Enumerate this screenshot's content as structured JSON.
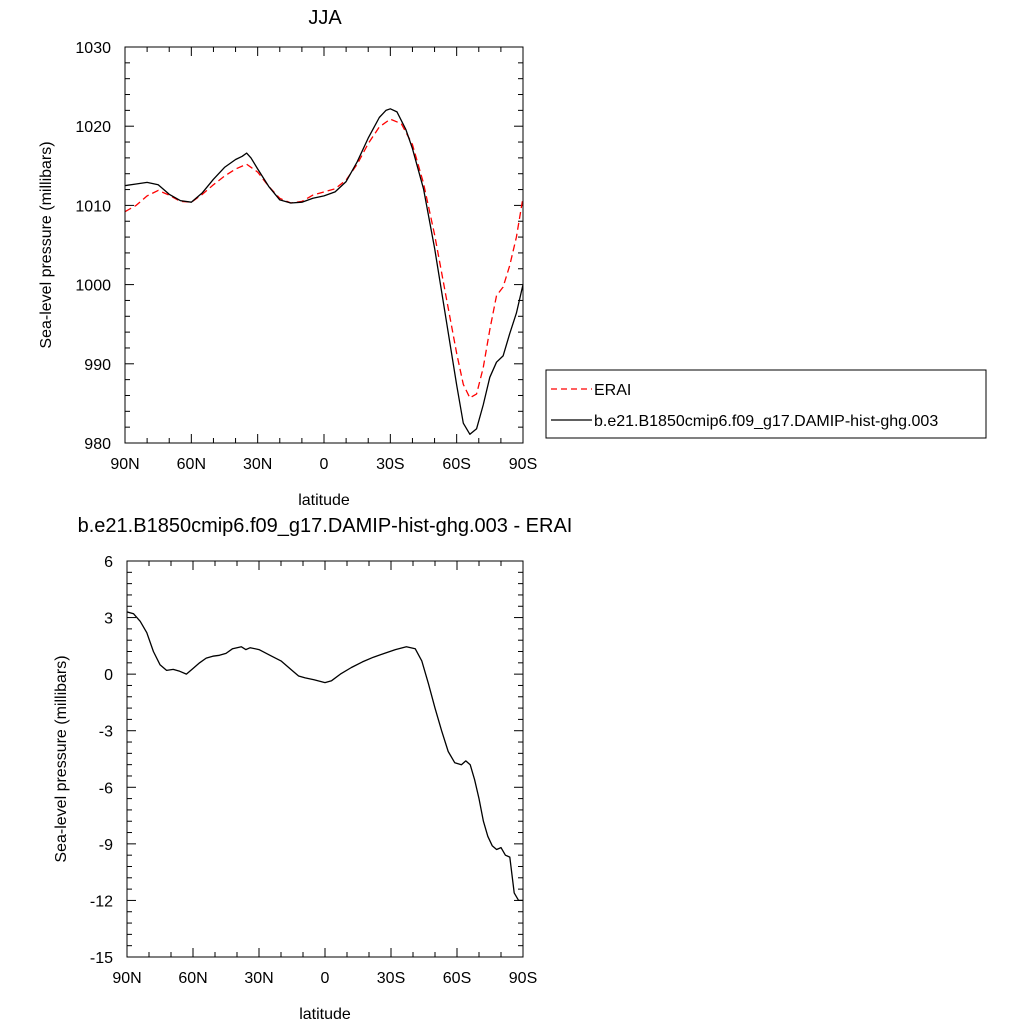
{
  "chart_data": [
    {
      "type": "line",
      "title": "JJA",
      "xlabel": "latitude",
      "ylabel": "Sea-level pressure (millibars)",
      "xlim": [
        90,
        -90
      ],
      "ylim": [
        980,
        1030
      ],
      "x_ticks": [
        90,
        60,
        30,
        0,
        -30,
        -60,
        -90
      ],
      "x_tick_labels": [
        "90N",
        "60N",
        "30N",
        "0",
        "30S",
        "60S",
        "90S"
      ],
      "y_ticks": [
        980,
        990,
        1000,
        1010,
        1020,
        1030
      ],
      "y_tick_labels": [
        "980",
        "990",
        "1000",
        "1010",
        "1020",
        "1030"
      ],
      "legend_position": "right",
      "series": [
        {
          "name": "ERAI",
          "color": "#ff0000",
          "dash": "dashed",
          "points": [
            [
              90,
              1009.2
            ],
            [
              85,
              1010
            ],
            [
              80,
              1011.2
            ],
            [
              75,
              1011.9
            ],
            [
              70,
              1011.3
            ],
            [
              65,
              1010.5
            ],
            [
              60,
              1010.4
            ],
            [
              55,
              1011.4
            ],
            [
              50,
              1012.6
            ],
            [
              45,
              1013.7
            ],
            [
              40,
              1014.6
            ],
            [
              35,
              1015.2
            ],
            [
              30,
              1014.2
            ],
            [
              25,
              1012.4
            ],
            [
              20,
              1010.9
            ],
            [
              15,
              1010.3
            ],
            [
              10,
              1010.5
            ],
            [
              5,
              1011.3
            ],
            [
              0,
              1011.7
            ],
            [
              -5,
              1012.1
            ],
            [
              -10,
              1013.2
            ],
            [
              -15,
              1015.2
            ],
            [
              -20,
              1017.8
            ],
            [
              -25,
              1019.9
            ],
            [
              -30,
              1020.9
            ],
            [
              -35,
              1020.3
            ],
            [
              -40,
              1017.7
            ],
            [
              -45,
              1012.8
            ],
            [
              -50,
              1006.3
            ],
            [
              -55,
              998.8
            ],
            [
              -60,
              991.3
            ],
            [
              -63,
              987.4
            ],
            [
              -66,
              985.7
            ],
            [
              -69,
              986.2
            ],
            [
              -72,
              989.5
            ],
            [
              -75,
              994.3
            ],
            [
              -78,
              998.6
            ],
            [
              -81,
              999.7
            ],
            [
              -84,
              1002.4
            ],
            [
              -87,
              1006
            ],
            [
              -90,
              1011
            ]
          ]
        },
        {
          "name": "b.e21.B1850cmip6.f09_g17.DAMIP-hist-ghg.003",
          "color": "#000000",
          "dash": "solid",
          "points": [
            [
              90,
              1012.5
            ],
            [
              85,
              1012.7
            ],
            [
              80,
              1012.9
            ],
            [
              75,
              1012.6
            ],
            [
              70,
              1011.4
            ],
            [
              65,
              1010.6
            ],
            [
              60,
              1010.4
            ],
            [
              55,
              1011.6
            ],
            [
              50,
              1013.3
            ],
            [
              45,
              1014.8
            ],
            [
              40,
              1015.8
            ],
            [
              37,
              1016.2
            ],
            [
              35,
              1016.6
            ],
            [
              33,
              1016
            ],
            [
              30,
              1014.6
            ],
            [
              25,
              1012.4
            ],
            [
              20,
              1010.7
            ],
            [
              15,
              1010.3
            ],
            [
              10,
              1010.4
            ],
            [
              5,
              1010.9
            ],
            [
              0,
              1011.2
            ],
            [
              -5,
              1011.7
            ],
            [
              -10,
              1013
            ],
            [
              -15,
              1015.5
            ],
            [
              -20,
              1018.5
            ],
            [
              -25,
              1021.1
            ],
            [
              -28,
              1022
            ],
            [
              -30,
              1022.2
            ],
            [
              -33,
              1021.8
            ],
            [
              -37,
              1019.6
            ],
            [
              -40,
              1017.2
            ],
            [
              -45,
              1012.1
            ],
            [
              -50,
              1004.6
            ],
            [
              -55,
              996
            ],
            [
              -60,
              987.3
            ],
            [
              -63,
              982.5
            ],
            [
              -66,
              981.1
            ],
            [
              -69,
              981.8
            ],
            [
              -72,
              984.8
            ],
            [
              -75,
              988.3
            ],
            [
              -78,
              990.2
            ],
            [
              -81,
              991
            ],
            [
              -84,
              993.8
            ],
            [
              -87,
              996.4
            ],
            [
              -90,
              1000
            ]
          ]
        }
      ]
    },
    {
      "type": "line",
      "title": "b.e21.B1850cmip6.f09_g17.DAMIP-hist-ghg.003 - ERAI",
      "xlabel": "latitude",
      "ylabel": "Sea-level pressure (millibars)",
      "xlim": [
        90,
        -90
      ],
      "ylim": [
        -15,
        6
      ],
      "x_ticks": [
        90,
        60,
        30,
        0,
        -30,
        -60,
        -90
      ],
      "x_tick_labels": [
        "90N",
        "60N",
        "30N",
        "0",
        "30S",
        "60S",
        "90S"
      ],
      "y_ticks": [
        -15,
        -12,
        -9,
        -6,
        -3,
        0,
        3,
        6
      ],
      "y_tick_labels": [
        "-15",
        "-12",
        "-9",
        "-6",
        "-3",
        "0",
        "3",
        "6"
      ],
      "series": [
        {
          "color": "#000000",
          "dash": "solid",
          "points": [
            [
              90,
              3.3
            ],
            [
              87,
              3.2
            ],
            [
              84,
              2.8
            ],
            [
              81,
              2.2
            ],
            [
              78,
              1.2
            ],
            [
              75,
              0.5
            ],
            [
              72,
              0.2
            ],
            [
              69,
              0.25
            ],
            [
              66,
              0.15
            ],
            [
              63,
              0
            ],
            [
              60,
              0.3
            ],
            [
              57,
              0.6
            ],
            [
              54,
              0.85
            ],
            [
              51,
              0.95
            ],
            [
              48,
              1.0
            ],
            [
              45,
              1.1
            ],
            [
              42,
              1.35
            ],
            [
              40,
              1.4
            ],
            [
              38,
              1.45
            ],
            [
              36,
              1.3
            ],
            [
              34,
              1.4
            ],
            [
              30,
              1.3
            ],
            [
              25,
              1.0
            ],
            [
              20,
              0.7
            ],
            [
              15,
              0.2
            ],
            [
              12,
              -0.1
            ],
            [
              9,
              -0.2
            ],
            [
              5,
              -0.3
            ],
            [
              0,
              -0.45
            ],
            [
              -3,
              -0.35
            ],
            [
              -7,
              0
            ],
            [
              -12,
              0.35
            ],
            [
              -17,
              0.65
            ],
            [
              -22,
              0.9
            ],
            [
              -27,
              1.1
            ],
            [
              -32,
              1.3
            ],
            [
              -37,
              1.45
            ],
            [
              -41,
              1.35
            ],
            [
              -44,
              0.7
            ],
            [
              -47,
              -0.5
            ],
            [
              -50,
              -1.8
            ],
            [
              -53,
              -3.0
            ],
            [
              -56,
              -4.1
            ],
            [
              -59,
              -4.7
            ],
            [
              -62,
              -4.8
            ],
            [
              -64,
              -4.6
            ],
            [
              -66,
              -4.8
            ],
            [
              -68,
              -5.6
            ],
            [
              -70,
              -6.6
            ],
            [
              -72,
              -7.8
            ],
            [
              -74,
              -8.6
            ],
            [
              -76,
              -9.1
            ],
            [
              -78,
              -9.3
            ],
            [
              -80,
              -9.2
            ],
            [
              -82,
              -9.6
            ],
            [
              -84,
              -9.7
            ],
            [
              -86,
              -11.6
            ],
            [
              -88,
              -12.0
            ],
            [
              -90,
              -12.0
            ]
          ]
        }
      ]
    }
  ]
}
